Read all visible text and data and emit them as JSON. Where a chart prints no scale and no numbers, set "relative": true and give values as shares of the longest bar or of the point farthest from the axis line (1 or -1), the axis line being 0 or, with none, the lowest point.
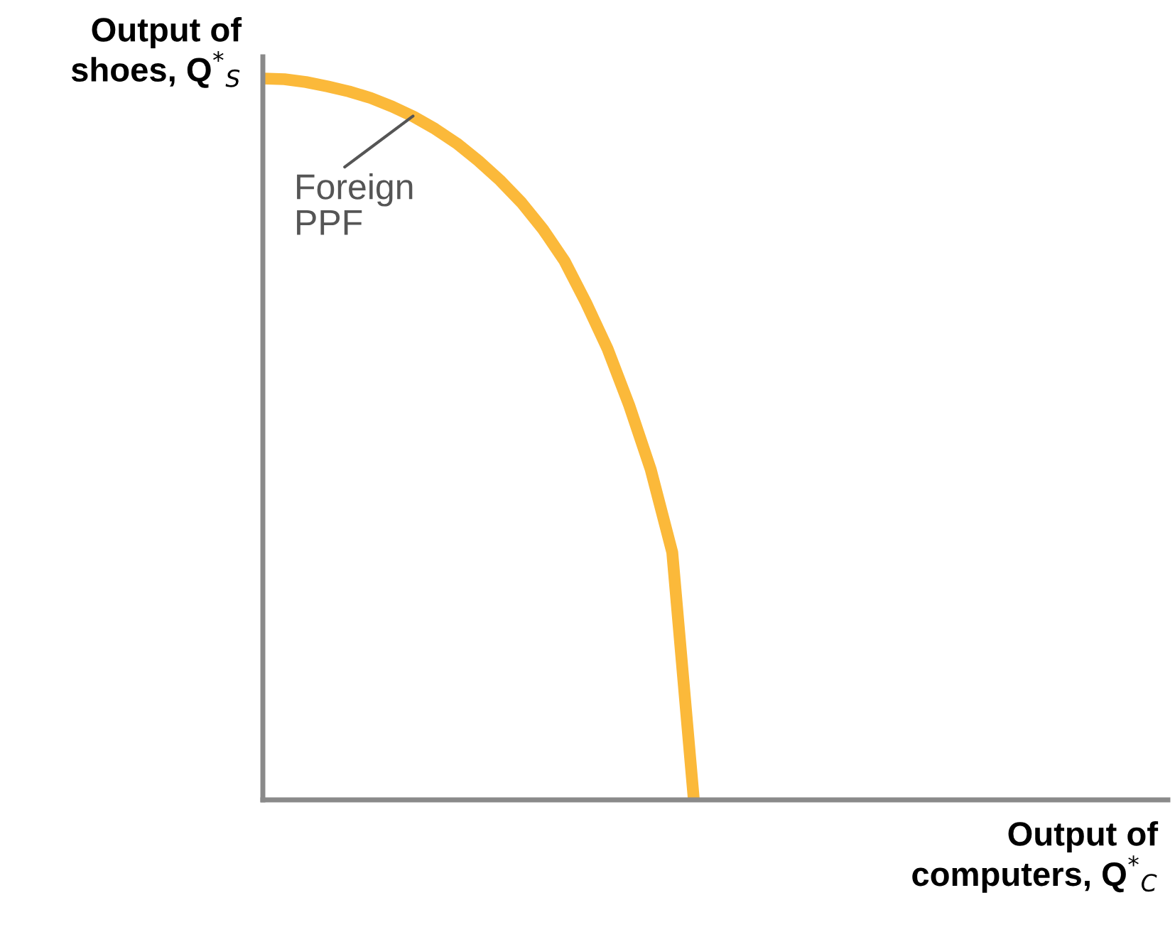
{
  "chart_data": {
    "type": "line",
    "relative": true,
    "xlabel": "Output of\ncomputers, Q$^{*}$$_{C}$",
    "ylabel": "Output of\nshoes, Q$^{*}$$_{S}$",
    "categories": [
      null,
      null,
      null,
      null,
      null,
      null,
      null,
      null,
      null,
      null,
      null,
      null,
      null,
      null,
      null,
      null,
      null,
      null,
      null,
      null,
      null,
      null,
      null,
      null,
      null,
      null,
      null,
      null,
      null,
      null,
      null,
      null,
      null,
      null,
      null,
      null,
      null,
      null,
      null,
      null,
      null,
      null,
      null
    ],
    "series": [
      {
        "color": "#fbb93a",
        "values": [
          1.0,
          0.999,
          0.995,
          0.989,
          0.982,
          0.973,
          0.961,
          0.947,
          0.93,
          0.91,
          0.886,
          0.859,
          0.828,
          0.791,
          0.747,
          0.689,
          0.625,
          0.547,
          0.458,
          0.343,
          0,
          null,
          null,
          null,
          null,
          null,
          null,
          null,
          null,
          null,
          null,
          null,
          null,
          null,
          null,
          null,
          null,
          null,
          null,
          null,
          null,
          null,
          null
        ]
      }
    ],
    "annotations": [
      "Foreign\nPPF"
    ],
    "grid": false,
    "legend": false,
    "marker": "none",
    "line_style": "solid"
  }
}
